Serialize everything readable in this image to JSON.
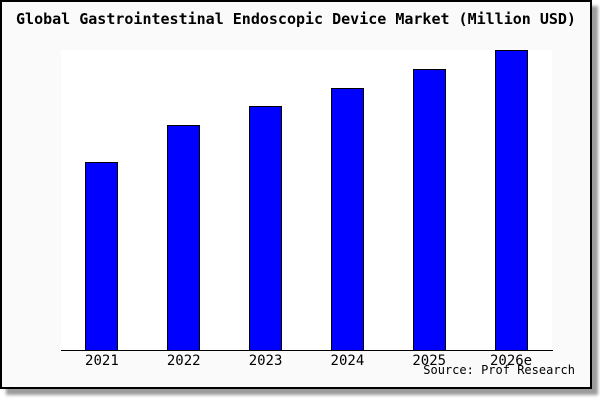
{
  "source": "Source: Prof Research",
  "colors": {
    "bar_fill": "#0000ff",
    "bar_border": "#000000",
    "card_background": "#fafafa",
    "card_border": "#000000",
    "plot_background": "#ffffff",
    "shadow": "#9c9c9c",
    "axis": "#000000",
    "text": "#000000"
  },
  "chart_data": {
    "type": "bar",
    "title": "Global Gastrointestinal Endoscopic Device Market (Million USD)",
    "categories": [
      "2021",
      "2022",
      "2023",
      "2024",
      "2025",
      "2026e"
    ],
    "values": [
      188,
      225,
      244,
      262,
      281,
      300
    ],
    "unit_note": "no y-axis labels shown in image; values are relative bar heights (max = 300)",
    "xlabel": "",
    "ylabel": "",
    "ylim": [
      0,
      300
    ],
    "grid": false,
    "legend": false,
    "y_axis_visible": false,
    "annotations": [
      "Source: Prof Research"
    ]
  }
}
